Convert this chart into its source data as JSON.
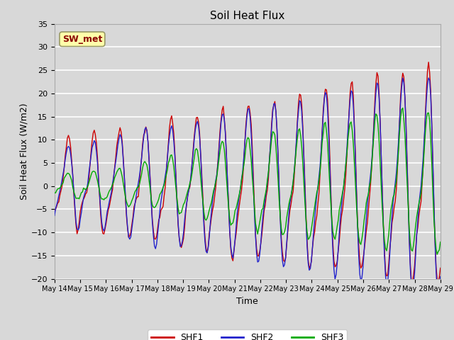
{
  "title": "Soil Heat Flux",
  "xlabel": "Time",
  "ylabel": "Soil Heat Flux (W/m2)",
  "ylim": [
    -20,
    35
  ],
  "background_color": "#d8d8d8",
  "plot_bg_color": "#d8d8d8",
  "grid_color": "white",
  "colors": {
    "SHF1": "#cc0000",
    "SHF2": "#2222cc",
    "SHF3": "#00aa00"
  },
  "annotation": "SW_met",
  "annotation_color": "#8b0000",
  "annotation_bg": "#ffffaa",
  "x_tick_labels": [
    "May 14",
    "May 15",
    "May 16",
    "May 17",
    "May 18",
    "May 19",
    "May 20",
    "May 21",
    "May 22",
    "May 23",
    "May 24",
    "May 25",
    "May 26",
    "May 27",
    "May 28",
    "May 29"
  ],
  "yticks": [
    -20,
    -15,
    -10,
    -5,
    0,
    5,
    10,
    15,
    20,
    25,
    30,
    35
  ],
  "n_days": 15,
  "samples_per_day": 24
}
